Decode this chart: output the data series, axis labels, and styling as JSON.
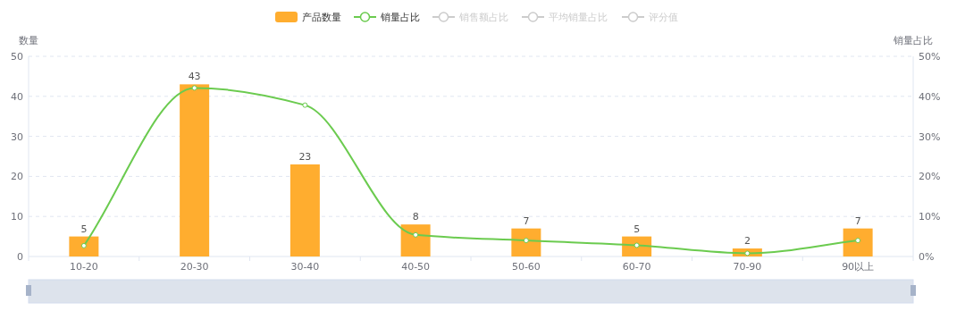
{
  "chart_data": {
    "type": "bar",
    "categories": [
      "10-20",
      "20-30",
      "30-40",
      "40-50",
      "50-60",
      "60-70",
      "70-90",
      "90以上"
    ],
    "ylabel": "数量",
    "y2label": "销量占比",
    "ylim": [
      0,
      50
    ],
    "yticks": [
      0,
      10,
      20,
      30,
      40,
      50
    ],
    "y2lim": [
      0,
      0.5
    ],
    "y2ticks": [
      {
        "value": 0,
        "label": "0%"
      },
      {
        "value": 0.1,
        "label": "10%"
      },
      {
        "value": 0.2,
        "label": "20%"
      },
      {
        "value": 0.3,
        "label": "30%"
      },
      {
        "value": 0.4,
        "label": "40%"
      },
      {
        "value": 0.5,
        "label": "50%"
      }
    ],
    "grid": "y",
    "legend": "top",
    "series": [
      {
        "name": "产品数量",
        "color": "#ffad2f",
        "values": [
          5,
          43,
          23,
          8,
          7,
          5,
          2,
          7
        ],
        "value_labels": [
          "5",
          "43",
          "23",
          "8",
          "7",
          "5",
          "2",
          "7"
        ]
      },
      {
        "name": "销量占比",
        "type": "line",
        "axis": "y2",
        "color": "#6bcb4f",
        "marker": "circle",
        "values": [
          0.027,
          0.421,
          0.378,
          0.054,
          0.04,
          0.028,
          0.008,
          0.04
        ]
      },
      {
        "name": "销售额占比",
        "type": "line",
        "color": "#cccccc",
        "values": [
          null,
          null,
          null,
          null,
          null,
          null,
          null,
          null
        ]
      },
      {
        "name": "平均销量占比",
        "type": "line",
        "color": "#cccccc",
        "values": [
          null,
          null,
          null,
          null,
          null,
          null,
          null,
          null
        ]
      },
      {
        "name": "评分值",
        "type": "line",
        "color": "#cccccc",
        "values": [
          null,
          null,
          null,
          null,
          null,
          null,
          null,
          null
        ]
      }
    ]
  }
}
